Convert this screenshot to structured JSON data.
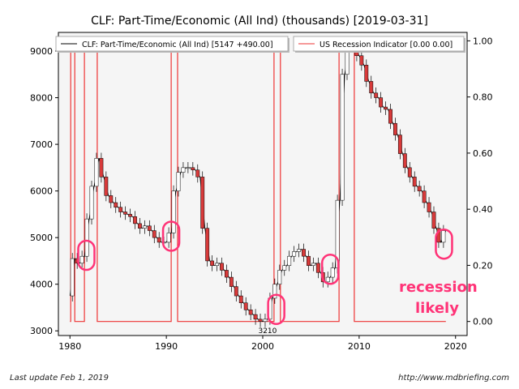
{
  "chart_data": {
    "type": "line",
    "title": "CLF: Part-Time/Economic (All Ind) (thousands) [2019-03-31]",
    "xlabel": "",
    "ylabel": "",
    "xlim": [
      1978.8,
      2021.2
    ],
    "ylim": [
      2900,
      9400
    ],
    "y2lim": [
      -0.05,
      1.03
    ],
    "x_ticks": [
      1980,
      1990,
      2000,
      2010,
      2020
    ],
    "y_ticks": [
      3000,
      4000,
      5000,
      6000,
      7000,
      8000,
      9000
    ],
    "y2_ticks": [
      0.0,
      0.2,
      0.4,
      0.6,
      0.8,
      1.0
    ],
    "y2_tick_labels": [
      "0.00",
      "0.20",
      "0.40",
      "0.60",
      "0.80",
      "1.00"
    ],
    "grid": false,
    "legend_position": "top",
    "series": [
      {
        "name": "CLF: Part-Time/Economic (All Ind) [5147 +490.00]",
        "color": "#000000",
        "style": "candlestick",
        "x": [
          1980.0,
          1980.5,
          1981.0,
          1981.5,
          1982.0,
          1982.5,
          1983.0,
          1983.5,
          1984.0,
          1984.5,
          1985.0,
          1985.5,
          1986.0,
          1986.5,
          1987.0,
          1987.5,
          1988.0,
          1988.5,
          1989.0,
          1989.5,
          1990.0,
          1990.5,
          1991.0,
          1991.5,
          1992.0,
          1992.5,
          1993.0,
          1993.5,
          1994.0,
          1994.5,
          1995.0,
          1995.5,
          1996.0,
          1996.5,
          1997.0,
          1997.5,
          1998.0,
          1998.5,
          1999.0,
          1999.5,
          2000.0,
          2000.5,
          2001.0,
          2001.5,
          2002.0,
          2002.5,
          2003.0,
          2003.5,
          2004.0,
          2004.5,
          2005.0,
          2005.5,
          2006.0,
          2006.5,
          2007.0,
          2007.5,
          2008.0,
          2008.5,
          2009.0,
          2009.5,
          2010.0,
          2010.5,
          2011.0,
          2011.5,
          2012.0,
          2012.5,
          2013.0,
          2013.5,
          2014.0,
          2014.5,
          2015.0,
          2015.5,
          2016.0,
          2016.5,
          2017.0,
          2017.5,
          2018.0,
          2018.5,
          2019.0
        ],
        "values": [
          3750,
          4550,
          4450,
          4600,
          5400,
          6100,
          6700,
          6300,
          5900,
          5750,
          5650,
          5550,
          5500,
          5450,
          5300,
          5200,
          5250,
          5150,
          5000,
          4900,
          4900,
          5100,
          6000,
          6400,
          6500,
          6500,
          6450,
          6300,
          5200,
          4500,
          4400,
          4450,
          4300,
          4150,
          3950,
          3750,
          3600,
          3450,
          3350,
          3250,
          3200,
          3250,
          3700,
          4000,
          4300,
          4400,
          4600,
          4700,
          4750,
          4600,
          4400,
          4450,
          4250,
          4050,
          4150,
          4350,
          5800,
          8500,
          9150,
          9100,
          8900,
          8700,
          8350,
          8100,
          8000,
          7800,
          7750,
          7450,
          7200,
          6800,
          6500,
          6300,
          6100,
          6000,
          5750,
          5550,
          5200,
          4900,
          5150
        ]
      },
      {
        "name": "US Recession Indicator [0.00 0.00]",
        "color": "#ee3333",
        "axis": "right",
        "x": [
          1980.0,
          1980.08,
          1980.08,
          1980.5,
          1980.5,
          1981.5,
          1981.5,
          1982.83,
          1982.83,
          1990.5,
          1990.5,
          1991.17,
          1991.17,
          2001.17,
          2001.17,
          2001.83,
          2001.83,
          2007.92,
          2007.92,
          2009.5,
          2009.5,
          2019.0
        ],
        "values": [
          0,
          0,
          1,
          1,
          0,
          0,
          1,
          1,
          0,
          0,
          1,
          1,
          0,
          0,
          1,
          1,
          0,
          0,
          1,
          1,
          0,
          0
        ]
      }
    ],
    "annotations": [
      {
        "text": "3210",
        "x": 2000.5,
        "y": 3000
      }
    ]
  },
  "callout": {
    "line1": "recession",
    "line2": "likely",
    "color": "#ff3377",
    "circles": [
      {
        "x": 1981.7,
        "y": 4620
      },
      {
        "x": 1990.5,
        "y": 5030
      },
      {
        "x": 2001.4,
        "y": 3460
      },
      {
        "x": 2007.0,
        "y": 4320
      },
      {
        "x": 2018.8,
        "y": 4860
      }
    ]
  },
  "footer": {
    "left": "Last update Feb  1, 2019",
    "right": "http://www.mdbriefing.com"
  }
}
